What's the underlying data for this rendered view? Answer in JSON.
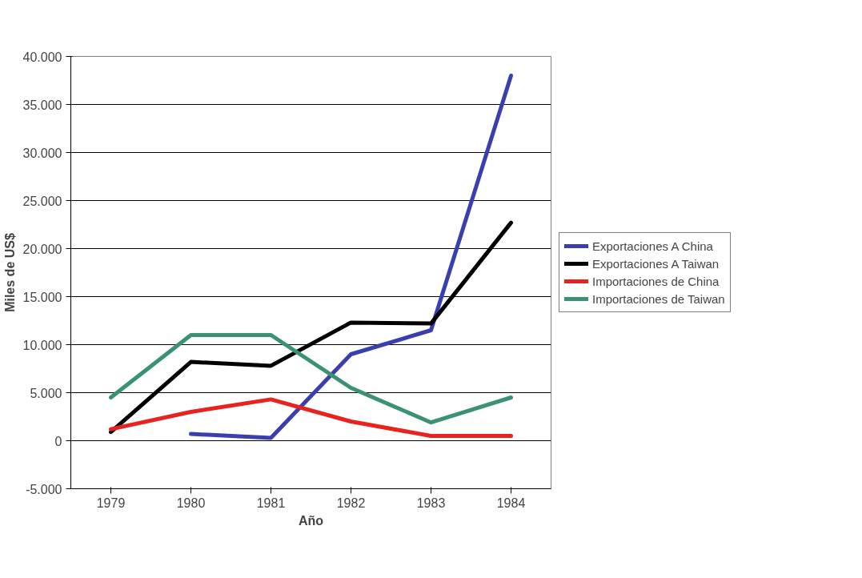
{
  "chart_data": {
    "type": "line",
    "xlabel": "Año",
    "ylabel": "Miles de US$",
    "categories": [
      "1979",
      "1980",
      "1981",
      "1982",
      "1983",
      "1984"
    ],
    "ylim": [
      -5000,
      40000
    ],
    "yticks": [
      {
        "value": -5000,
        "label": "-5.000"
      },
      {
        "value": 0,
        "label": "0"
      },
      {
        "value": 5000,
        "label": "5.000"
      },
      {
        "value": 10000,
        "label": "10.000"
      },
      {
        "value": 15000,
        "label": "15.000"
      },
      {
        "value": 20000,
        "label": "20.000"
      },
      {
        "value": 25000,
        "label": "25.000"
      },
      {
        "value": 30000,
        "label": "30.000"
      },
      {
        "value": 35000,
        "label": "35.000"
      },
      {
        "value": 40000,
        "label": "40.000"
      }
    ],
    "grid": "y",
    "legend": "right",
    "line_style": "solid",
    "marker": "none",
    "series": [
      {
        "name": "Exportaciones A China",
        "color": "#3a3fb0",
        "values": [
          null,
          700,
          300,
          9000,
          11500,
          38000
        ]
      },
      {
        "name": "Exportaciones A Taiwan",
        "color": "#000000",
        "values": [
          900,
          8200,
          7800,
          12300,
          12200,
          22700
        ]
      },
      {
        "name": "Importaciones de China",
        "color": "#e8231e",
        "values": [
          1200,
          3000,
          4300,
          2000,
          500,
          500
        ]
      },
      {
        "name": "Importaciones de Taiwan",
        "color": "#3a9272",
        "values": [
          4500,
          11000,
          11000,
          5500,
          1900,
          4500
        ]
      }
    ]
  }
}
